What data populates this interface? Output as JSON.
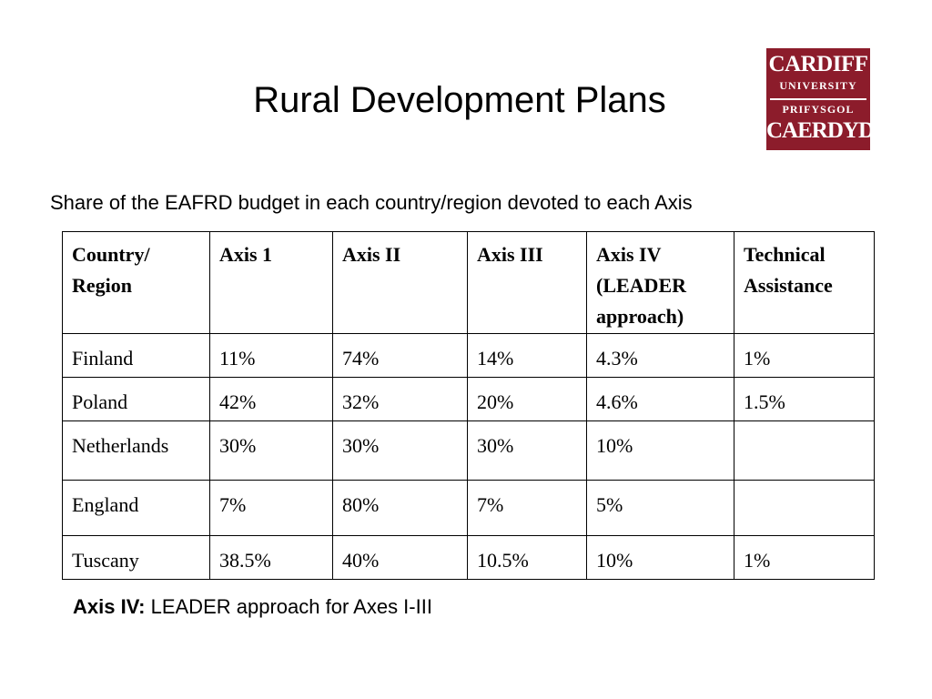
{
  "slide": {
    "title": "Rural Development Plans",
    "subtitle": "Share of the EAFRD budget in each country/region devoted to each Axis"
  },
  "logo": {
    "line1": "CARDIFF",
    "line2": "UNIVERSITY",
    "line3": "PRIFYSGOL",
    "line4": "CAERDYDD",
    "color": "#8c1c2b"
  },
  "table": {
    "headers": [
      "Country/ Region",
      "Axis 1",
      "Axis II",
      "Axis III",
      "Axis IV (LEADER approach)",
      "Technical Assistance"
    ],
    "rows": [
      [
        "Finland",
        "11%",
        "74%",
        "14%",
        "4.3%",
        "1%"
      ],
      [
        "Poland",
        "42%",
        "32%",
        "20%",
        "4.6%",
        "1.5%"
      ],
      [
        "Netherlands",
        "30%",
        "30%",
        "30%",
        "10%",
        ""
      ],
      [
        "England",
        "7%",
        "80%",
        "7%",
        "5%",
        ""
      ],
      [
        "Tuscany",
        "38.5%",
        "40%",
        "10.5%",
        "10%",
        "1%"
      ]
    ]
  },
  "note": {
    "label": "Axis IV:",
    "text": " LEADER approach for Axes I-III"
  }
}
